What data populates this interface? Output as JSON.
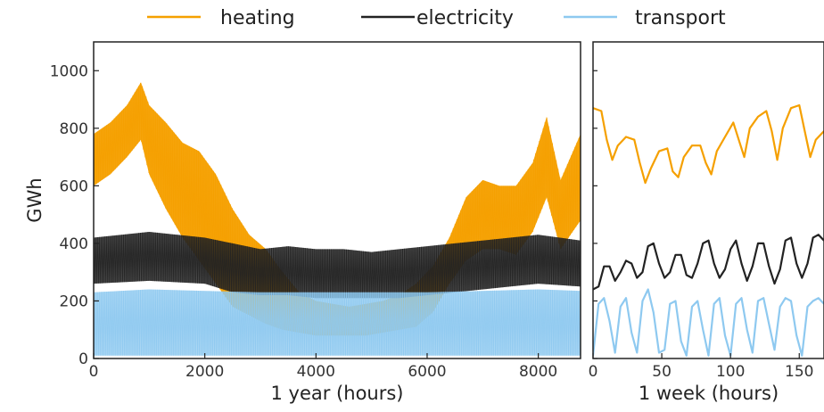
{
  "legend": [
    {
      "name": "heating",
      "color": "#F5A000"
    },
    {
      "name": "electricity",
      "color": "#222222"
    },
    {
      "name": "transport",
      "color": "#8EC9F0"
    }
  ],
  "chart_data": [
    {
      "type": "line",
      "xlabel": "1 year (hours)",
      "ylabel": "GWh",
      "xlim": [
        0,
        8760
      ],
      "ylim": [
        0,
        1100
      ],
      "xticks": [
        "0",
        "2000",
        "4000",
        "6000",
        "8000"
      ],
      "yticks": [
        "0",
        "200",
        "400",
        "600",
        "800",
        "1000"
      ],
      "grid": false,
      "legend_position": "top",
      "series": [
        {
          "name": "heating",
          "x": [
            0,
            300,
            600,
            850,
            1000,
            1300,
            1600,
            1900,
            2200,
            2500,
            2800,
            3100,
            3400,
            3700,
            4000,
            4300,
            4600,
            4900,
            5200,
            5500,
            5800,
            6100,
            6400,
            6700,
            7000,
            7300,
            7600,
            7900,
            8150,
            8400,
            8760
          ],
          "upper": [
            780,
            820,
            880,
            960,
            880,
            820,
            750,
            720,
            640,
            520,
            430,
            380,
            300,
            230,
            200,
            190,
            180,
            190,
            200,
            220,
            260,
            320,
            420,
            560,
            620,
            600,
            600,
            680,
            840,
            620,
            780
          ],
          "lower": [
            600,
            640,
            700,
            760,
            640,
            520,
            420,
            340,
            260,
            180,
            150,
            120,
            100,
            90,
            80,
            80,
            80,
            80,
            90,
            100,
            110,
            160,
            260,
            340,
            380,
            380,
            360,
            440,
            560,
            380,
            480
          ]
        },
        {
          "name": "electricity",
          "x": [
            0,
            1000,
            2000,
            2500,
            3000,
            3500,
            4000,
            4500,
            5000,
            5500,
            6000,
            6500,
            7000,
            7500,
            8000,
            8760
          ],
          "upper": [
            420,
            440,
            420,
            400,
            380,
            390,
            380,
            380,
            370,
            380,
            390,
            400,
            410,
            420,
            430,
            410
          ],
          "lower": [
            260,
            270,
            260,
            230,
            220,
            220,
            210,
            210,
            210,
            210,
            220,
            230,
            240,
            250,
            260,
            250
          ]
        },
        {
          "name": "transport",
          "x": [
            0,
            1000,
            2000,
            3000,
            4000,
            5000,
            6000,
            7000,
            8000,
            8760
          ],
          "upper": [
            230,
            240,
            235,
            230,
            230,
            230,
            230,
            235,
            240,
            235
          ],
          "lower": [
            10,
            10,
            10,
            10,
            10,
            10,
            10,
            10,
            10,
            10
          ]
        }
      ]
    },
    {
      "type": "line",
      "xlabel": "1 week (hours)",
      "ylabel": "",
      "xlim": [
        0,
        168
      ],
      "ylim": [
        0,
        1100
      ],
      "xticks": [
        "0",
        "50",
        "100",
        "150"
      ],
      "grid": false,
      "series": [
        {
          "name": "heating",
          "x": [
            0,
            6,
            10,
            14,
            18,
            24,
            30,
            34,
            38,
            42,
            48,
            54,
            58,
            62,
            66,
            72,
            78,
            82,
            86,
            90,
            96,
            102,
            106,
            110,
            114,
            120,
            126,
            130,
            134,
            138,
            144,
            150,
            154,
            158,
            162,
            168
          ],
          "y": [
            870,
            860,
            760,
            690,
            740,
            770,
            760,
            680,
            610,
            660,
            720,
            730,
            650,
            630,
            700,
            740,
            740,
            680,
            640,
            720,
            770,
            820,
            760,
            700,
            800,
            840,
            860,
            790,
            690,
            800,
            870,
            880,
            790,
            700,
            760,
            790
          ]
        },
        {
          "name": "electricity",
          "x": [
            0,
            4,
            8,
            12,
            16,
            20,
            24,
            28,
            32,
            36,
            40,
            44,
            48,
            52,
            56,
            60,
            64,
            68,
            72,
            76,
            80,
            84,
            88,
            92,
            96,
            100,
            104,
            108,
            112,
            116,
            120,
            124,
            128,
            132,
            136,
            140,
            144,
            148,
            152,
            156,
            160,
            164,
            168
          ],
          "y": [
            240,
            250,
            320,
            320,
            270,
            300,
            340,
            330,
            280,
            300,
            390,
            400,
            330,
            280,
            300,
            360,
            360,
            290,
            280,
            330,
            400,
            410,
            330,
            280,
            310,
            380,
            410,
            330,
            270,
            320,
            400,
            400,
            320,
            260,
            310,
            410,
            420,
            330,
            280,
            330,
            420,
            430,
            410
          ]
        },
        {
          "name": "transport",
          "x": [
            0,
            4,
            8,
            12,
            16,
            20,
            24,
            28,
            32,
            36,
            40,
            44,
            48,
            52,
            56,
            60,
            64,
            68,
            72,
            76,
            80,
            84,
            88,
            92,
            96,
            100,
            104,
            108,
            112,
            116,
            120,
            124,
            128,
            132,
            136,
            140,
            144,
            148,
            152,
            156,
            160,
            164,
            168
          ],
          "y": [
            10,
            190,
            210,
            130,
            20,
            180,
            210,
            90,
            20,
            200,
            240,
            160,
            20,
            30,
            190,
            200,
            60,
            10,
            180,
            200,
            100,
            10,
            190,
            210,
            80,
            10,
            190,
            210,
            100,
            20,
            200,
            210,
            120,
            30,
            180,
            210,
            200,
            80,
            10,
            180,
            200,
            210,
            190
          ]
        }
      ]
    }
  ]
}
